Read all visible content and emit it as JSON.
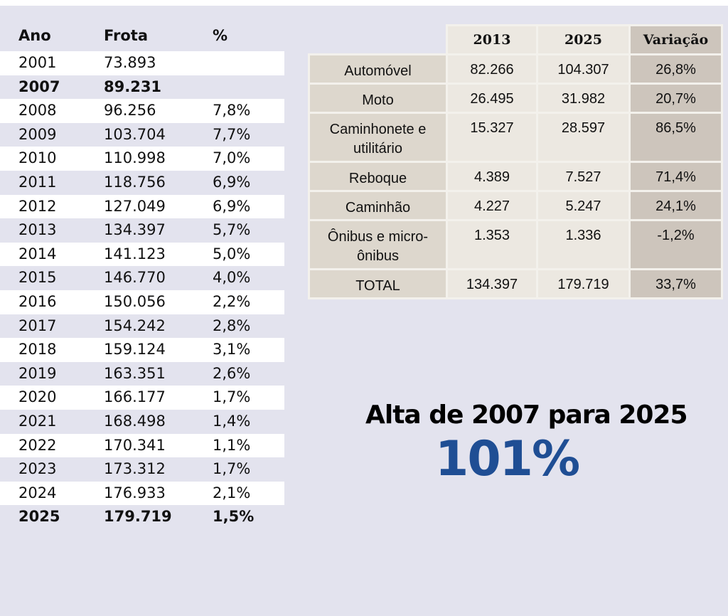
{
  "left_table": {
    "headers": {
      "ano": "Ano",
      "frota": "Frota",
      "pct": "%"
    },
    "rows": [
      {
        "ano": "2001",
        "frota": "73.893",
        "pct": "",
        "bold": false
      },
      {
        "ano": "2007",
        "frota": "89.231",
        "pct": "",
        "bold": true
      },
      {
        "ano": "2008",
        "frota": "96.256",
        "pct": "7,8%",
        "bold": false
      },
      {
        "ano": "2009",
        "frota": "103.704",
        "pct": "7,7%",
        "bold": false
      },
      {
        "ano": "2010",
        "frota": "110.998",
        "pct": "7,0%",
        "bold": false
      },
      {
        "ano": "2011",
        "frota": "118.756",
        "pct": "6,9%",
        "bold": false
      },
      {
        "ano": "2012",
        "frota": "127.049",
        "pct": "6,9%",
        "bold": false
      },
      {
        "ano": "2013",
        "frota": "134.397",
        "pct": "5,7%",
        "bold": false
      },
      {
        "ano": "2014",
        "frota": "141.123",
        "pct": "5,0%",
        "bold": false
      },
      {
        "ano": "2015",
        "frota": "146.770",
        "pct": "4,0%",
        "bold": false
      },
      {
        "ano": "2016",
        "frota": "150.056",
        "pct": "2,2%",
        "bold": false
      },
      {
        "ano": "2017",
        "frota": "154.242",
        "pct": "2,8%",
        "bold": false
      },
      {
        "ano": "2018",
        "frota": "159.124",
        "pct": "3,1%",
        "bold": false
      },
      {
        "ano": "2019",
        "frota": "163.351",
        "pct": "2,6%",
        "bold": false
      },
      {
        "ano": "2020",
        "frota": "166.177",
        "pct": "1,7%",
        "bold": false
      },
      {
        "ano": "2021",
        "frota": "168.498",
        "pct": "1,4%",
        "bold": false
      },
      {
        "ano": "2022",
        "frota": "170.341",
        "pct": "1,1%",
        "bold": false
      },
      {
        "ano": "2023",
        "frota": "173.312",
        "pct": "1,7%",
        "bold": false
      },
      {
        "ano": "2024",
        "frota": "176.933",
        "pct": "2,1%",
        "bold": false
      },
      {
        "ano": "2025",
        "frota": "179.719",
        "pct": "1,5%",
        "bold": true
      }
    ]
  },
  "right_table": {
    "headers": [
      "2013",
      "2025",
      "Variação"
    ],
    "rows": [
      {
        "label": "Automóvel",
        "v2013": "82.266",
        "v2025": "104.307",
        "var": "26,8%"
      },
      {
        "label": "Moto",
        "v2013": "26.495",
        "v2025": "31.982",
        "var": "20,7%"
      },
      {
        "label": "Caminhonete e utilitário",
        "v2013": "15.327",
        "v2025": "28.597",
        "var": "86,5%"
      },
      {
        "label": "Reboque",
        "v2013": "4.389",
        "v2025": "7.527",
        "var": "71,4%"
      },
      {
        "label": "Caminhão",
        "v2013": "4.227",
        "v2025": "5.247",
        "var": "24,1%"
      },
      {
        "label": "Ônibus e micro-ônibus",
        "v2013": "1.353",
        "v2025": "1.336",
        "var": "-1,2%"
      },
      {
        "label": "TOTAL",
        "v2013": "134.397",
        "v2025": "179.719",
        "var": "33,7%"
      }
    ]
  },
  "headline": {
    "text": "Alta de 2007 para 2025",
    "value": "101%",
    "value_color": "#1f4e94"
  }
}
